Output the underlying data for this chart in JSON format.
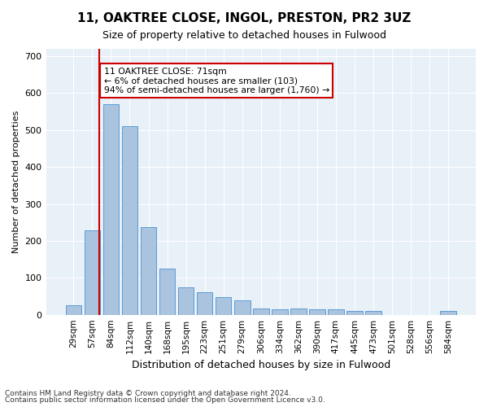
{
  "title1": "11, OAKTREE CLOSE, INGOL, PRESTON, PR2 3UZ",
  "title2": "Size of property relative to detached houses in Fulwood",
  "xlabel": "Distribution of detached houses by size in Fulwood",
  "ylabel": "Number of detached properties",
  "categories": [
    "29sqm",
    "57sqm",
    "84sqm",
    "112sqm",
    "140sqm",
    "168sqm",
    "195sqm",
    "223sqm",
    "251sqm",
    "279sqm",
    "306sqm",
    "334sqm",
    "362sqm",
    "390sqm",
    "417sqm",
    "445sqm",
    "473sqm",
    "501sqm",
    "528sqm",
    "556sqm",
    "584sqm"
  ],
  "values": [
    25,
    228,
    570,
    510,
    238,
    125,
    75,
    60,
    48,
    40,
    18,
    15,
    18,
    14,
    14,
    10,
    10,
    0,
    0,
    0,
    10
  ],
  "bar_color": "#aac4e0",
  "bar_edge_color": "#5b9bd5",
  "property_line_x": 71,
  "property_line_bin": 1,
  "annotation_text": "11 OAKTREE CLOSE: 71sqm\n← 6% of detached houses are smaller (103)\n94% of semi-detached houses are larger (1,760) →",
  "annotation_box_color": "#ffffff",
  "annotation_box_edge": "#cc0000",
  "vline_color": "#cc0000",
  "ylim": [
    0,
    720
  ],
  "yticks": [
    0,
    100,
    200,
    300,
    400,
    500,
    600,
    700
  ],
  "background_color": "#e8f0f8",
  "footer1": "Contains HM Land Registry data © Crown copyright and database right 2024.",
  "footer2": "Contains public sector information licensed under the Open Government Licence v3.0."
}
